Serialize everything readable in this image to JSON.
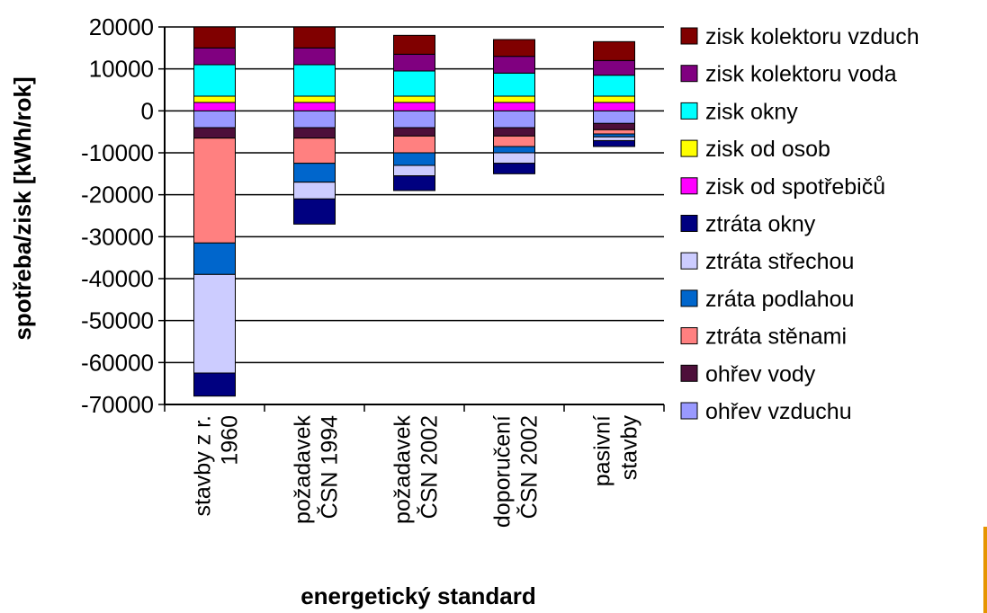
{
  "chart_data": {
    "type": "bar",
    "stacked": true,
    "xlabel": "energetický standard",
    "ylabel": "spotřeba/zisk [kWh/rok]",
    "ylim": [
      -70000,
      20000
    ],
    "yticks": [
      20000,
      10000,
      0,
      -10000,
      -20000,
      -30000,
      -40000,
      -50000,
      -60000,
      -70000
    ],
    "ytick_labels": [
      "20000",
      "10000",
      "0",
      "-10000",
      "-20000",
      "-30000",
      "-40000",
      "-50000",
      "-60000",
      "-70000"
    ],
    "grid": true,
    "legend_position": "right",
    "categories": [
      [
        "stavby z r.",
        "1960"
      ],
      [
        "požadavek",
        "ČSN 1994"
      ],
      [
        "požadavek",
        "ČSN 2002"
      ],
      [
        "doporučení",
        "ČSN 2002"
      ],
      [
        "pasivní",
        "stavby"
      ]
    ],
    "series": [
      {
        "name": "ohřev vzduchu",
        "color": "#9999ff",
        "values": [
          -4000,
          -4000,
          -4000,
          -4000,
          -3000
        ]
      },
      {
        "name": "ohřev vody",
        "color": "#4d0f3a",
        "values": [
          -2500,
          -2500,
          -2000,
          -2000,
          -1500
        ]
      },
      {
        "name": "ztráta stěnami",
        "color": "#ff8080",
        "values": [
          -25000,
          -6000,
          -4000,
          -2500,
          -1000
        ]
      },
      {
        "name": "zráta podlahou",
        "color": "#0066cc",
        "values": [
          -7500,
          -4500,
          -3000,
          -1500,
          -700
        ]
      },
      {
        "name": "ztráta střechou",
        "color": "#ccccff",
        "values": [
          -23500,
          -4000,
          -2500,
          -2500,
          -900
        ]
      },
      {
        "name": "ztráta okny",
        "color": "#000080",
        "values": [
          -5500,
          -6000,
          -3500,
          -2500,
          -1400
        ]
      },
      {
        "name": "zisk od spotřebičů",
        "color": "#ff00ff",
        "values": [
          2000,
          2000,
          2000,
          2000,
          2000
        ]
      },
      {
        "name": "zisk od osob",
        "color": "#ffff00",
        "values": [
          1500,
          1500,
          1500,
          1500,
          1500
        ]
      },
      {
        "name": "zisk okny",
        "color": "#00ffff",
        "values": [
          7500,
          7500,
          6000,
          5500,
          5000
        ]
      },
      {
        "name": "zisk kolektoru voda",
        "color": "#800080",
        "values": [
          4000,
          4000,
          4000,
          4000,
          3500
        ]
      },
      {
        "name": "zisk kolektoru vzduch",
        "color": "#800000",
        "values": [
          5000,
          5000,
          4500,
          4000,
          4500
        ]
      }
    ],
    "legend_order": [
      "zisk kolektoru vzduch",
      "zisk kolektoru voda",
      "zisk okny",
      "zisk od osob",
      "zisk od spotřebičů",
      "ztráta okny",
      "ztráta střechou",
      "zráta podlahou",
      "ztráta stěnami",
      "ohřev vody",
      "ohřev vzduchu"
    ]
  }
}
